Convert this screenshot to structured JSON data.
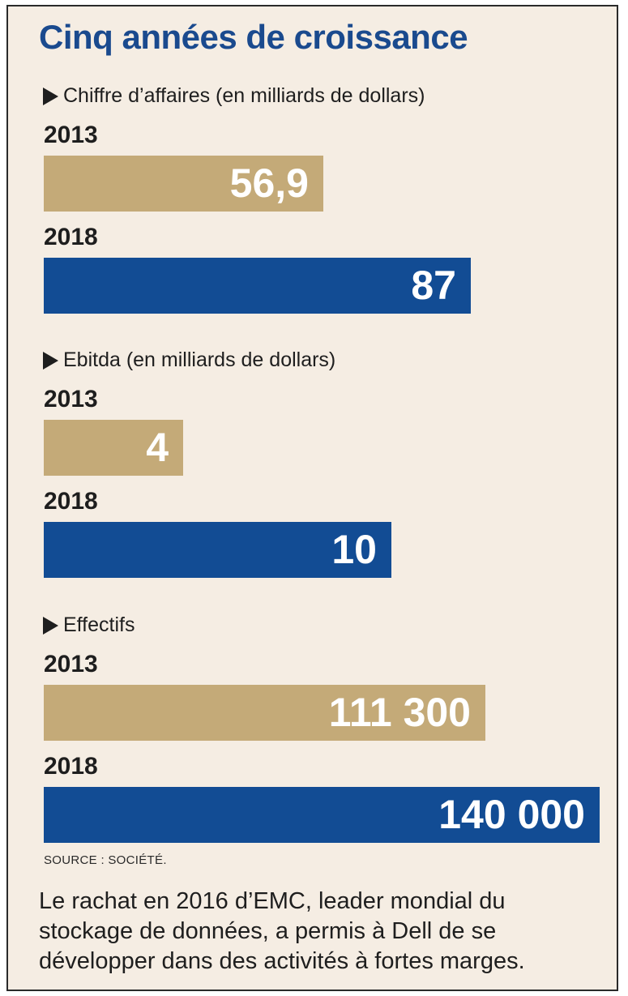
{
  "chart_data": {
    "type": "bar",
    "title": "Cinq années de croissance",
    "colors": {
      "2013": "#c4aa78",
      "2018": "#124c94"
    },
    "panels": [
      {
        "subtitle": "Chiffre d’affaires (en milliards de dollars)",
        "max": 87,
        "bars": [
          {
            "year": "2013",
            "value": 56.9,
            "label": "56,9"
          },
          {
            "year": "2018",
            "value": 87,
            "label": "87"
          }
        ]
      },
      {
        "subtitle": "Ebitda (en milliards de dollars)",
        "max": 10,
        "bars": [
          {
            "year": "2013",
            "value": 4,
            "label": "4"
          },
          {
            "year": "2018",
            "value": 10,
            "label": "10"
          }
        ]
      },
      {
        "subtitle": "Effectifs",
        "max": 140000,
        "bars": [
          {
            "year": "2013",
            "value": 111300,
            "label": "111 300"
          },
          {
            "year": "2018",
            "value": 140000,
            "label": "140 000"
          }
        ]
      }
    ]
  },
  "source": "SOURCE : SOCIÉTÉ.",
  "caption": "Le rachat en 2016 d’EMC, leader mondial du stockage de données, a permis à Dell de se développer dans des activités à fortes marges."
}
